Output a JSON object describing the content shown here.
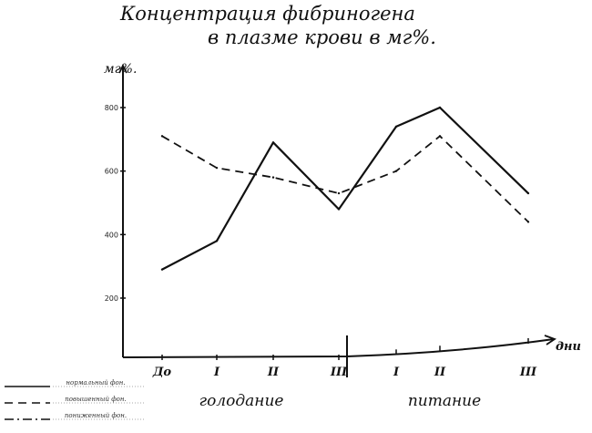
{
  "chart_data": {
    "type": "line",
    "title": "Концентрация фибриногена",
    "subtitle": "в плазме крови в мг%.",
    "ylabel": "мг%.",
    "xlabel": "дни",
    "ylim": [
      150,
      900
    ],
    "yticks": [
      {
        "value": 800,
        "label": "800"
      },
      {
        "value": 600,
        "label": "600"
      },
      {
        "value": 400,
        "label": "400"
      },
      {
        "value": 200,
        "label": "200"
      }
    ],
    "categories": [
      "До",
      "I",
      "II",
      "III",
      "I",
      "II",
      "III"
    ],
    "groups": [
      {
        "label": "голодание"
      },
      {
        "label": "питание"
      }
    ],
    "series": [
      {
        "name": "нормальный фон.",
        "style": "solid",
        "values": [
          290,
          380,
          690,
          480,
          740,
          800,
          530
        ]
      },
      {
        "name": "повышенный фон.",
        "style": "dashed",
        "values": [
          710,
          610,
          580,
          530,
          600,
          710,
          440
        ]
      }
    ],
    "legend": [
      {
        "label": "нормальный фон.",
        "style": "solid"
      },
      {
        "label": "повышенный фон.",
        "style": "dashed"
      },
      {
        "label": "пониженный фон.",
        "style": "dashdot"
      }
    ],
    "colors": {
      "ink": "#111111",
      "paper": "#ffffff"
    }
  }
}
